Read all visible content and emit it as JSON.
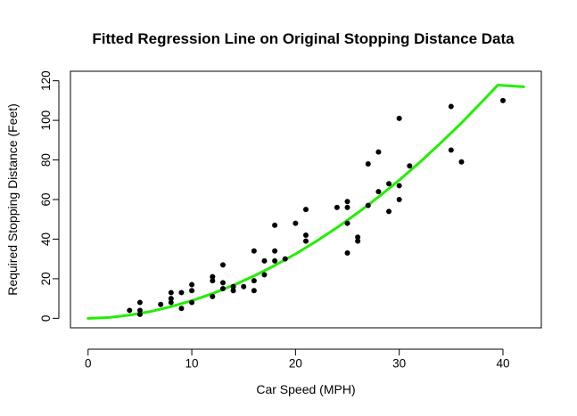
{
  "chart_data": {
    "type": "scatter",
    "title": "Fitted Regression Line on Original Stopping Distance Data",
    "xlabel": "Car Speed (MPH)",
    "ylabel": "Required Stopping Distance (Feet)",
    "xlim": [
      -1.7,
      43.7
    ],
    "ylim": [
      -4.8,
      124.8
    ],
    "xticks": [
      0,
      10,
      20,
      30,
      40
    ],
    "yticks": [
      0,
      20,
      40,
      60,
      80,
      100,
      120
    ],
    "grid": false,
    "legend": "none",
    "series": [
      {
        "kind": "points",
        "color": "#000000",
        "points": [
          [
            4,
            4
          ],
          [
            5,
            2
          ],
          [
            5,
            4
          ],
          [
            5,
            8
          ],
          [
            7,
            7
          ],
          [
            8,
            8
          ],
          [
            8,
            10
          ],
          [
            8,
            13
          ],
          [
            9,
            5
          ],
          [
            9,
            13
          ],
          [
            10,
            8
          ],
          [
            10,
            14
          ],
          [
            10,
            17
          ],
          [
            12,
            11
          ],
          [
            12,
            19
          ],
          [
            12,
            21
          ],
          [
            13,
            15
          ],
          [
            13,
            18
          ],
          [
            13,
            27
          ],
          [
            14,
            14
          ],
          [
            14,
            16
          ],
          [
            15,
            16
          ],
          [
            16,
            14
          ],
          [
            16,
            19
          ],
          [
            16,
            34
          ],
          [
            17,
            22
          ],
          [
            17,
            29
          ],
          [
            18,
            29
          ],
          [
            18,
            34
          ],
          [
            18,
            47
          ],
          [
            19,
            30
          ],
          [
            20,
            48
          ],
          [
            21,
            39
          ],
          [
            21,
            42
          ],
          [
            21,
            55
          ],
          [
            24,
            56
          ],
          [
            25,
            33
          ],
          [
            25,
            48
          ],
          [
            25,
            56
          ],
          [
            25,
            59
          ],
          [
            26,
            39
          ],
          [
            26,
            41
          ],
          [
            27,
            57
          ],
          [
            27,
            78
          ],
          [
            28,
            64
          ],
          [
            28,
            84
          ],
          [
            29,
            54
          ],
          [
            29,
            68
          ],
          [
            30,
            60
          ],
          [
            30,
            67
          ],
          [
            30,
            101
          ],
          [
            31,
            77
          ],
          [
            35,
            85
          ],
          [
            35,
            107
          ],
          [
            36,
            79
          ],
          [
            40,
            110
          ]
        ]
      },
      {
        "kind": "curve",
        "color": "#22ee00",
        "points": [
          [
            0,
            0
          ],
          [
            2,
            0.4
          ],
          [
            4,
            1.6
          ],
          [
            6,
            3.4
          ],
          [
            8,
            5.9
          ],
          [
            10,
            8.9
          ],
          [
            12,
            12.5
          ],
          [
            14,
            16.7
          ],
          [
            16,
            21.4
          ],
          [
            18,
            26.7
          ],
          [
            20,
            32.5
          ],
          [
            22,
            38.9
          ],
          [
            24,
            45.8
          ],
          [
            26,
            53.3
          ],
          [
            28,
            61.3
          ],
          [
            30,
            69.8
          ],
          [
            32,
            78.9
          ],
          [
            34,
            88.6
          ],
          [
            36,
            98.7
          ],
          [
            38,
            109.5
          ],
          [
            39.5,
            117.8
          ],
          [
            42,
            117
          ]
        ]
      }
    ]
  }
}
